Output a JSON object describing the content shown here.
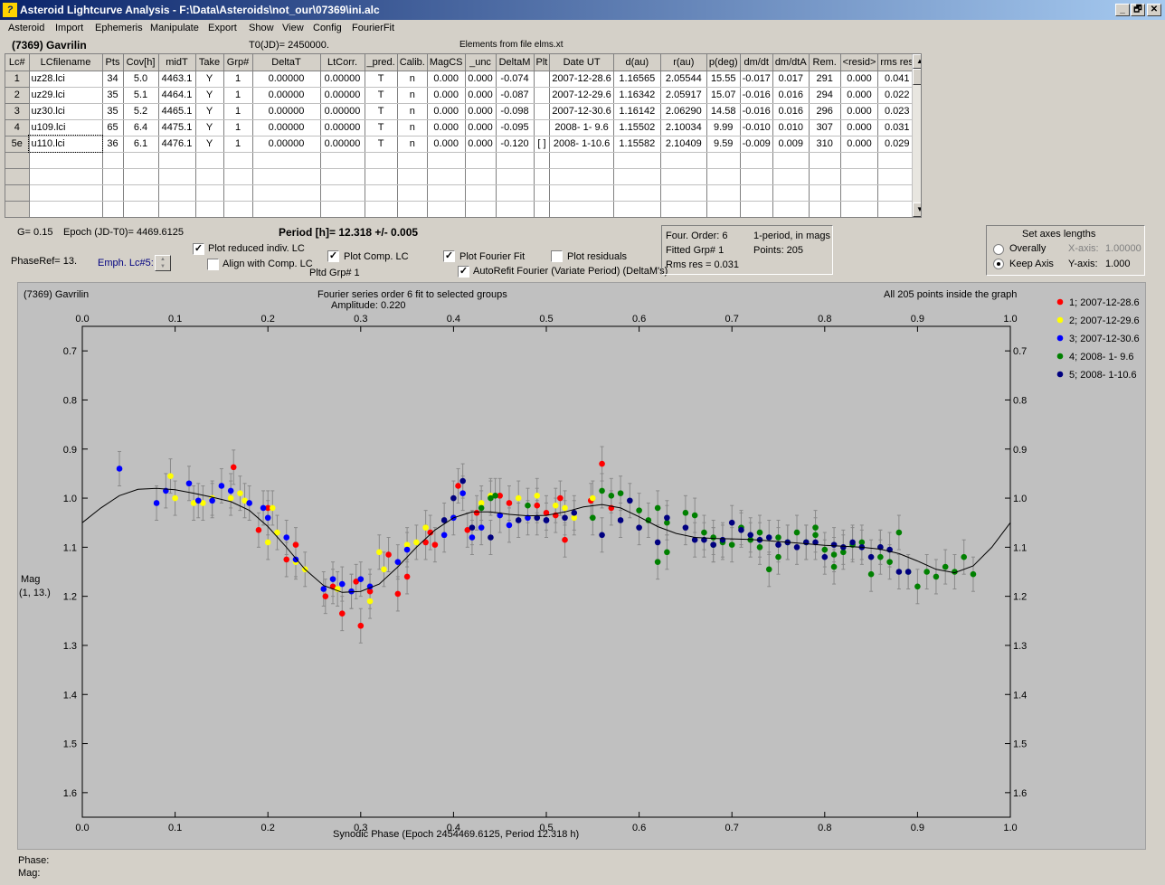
{
  "window": {
    "title": "Asteroid Lightcurve Analysis - F:\\Data\\Asteroids\\not_our\\07369\\ini.alc",
    "icon_name": "alc-app-icon",
    "controls": [
      "_",
      "🗗",
      "✕"
    ]
  },
  "menu": [
    "Asteroid",
    "Import",
    "Ephemeris",
    "Manipulate",
    "Export",
    "Show",
    "View",
    "Config",
    "FourierFit"
  ],
  "header": {
    "asteroid": "(7369) Gavrilin",
    "t0": "T0(JD)= 2450000.",
    "elements": "Elements from file elms.xt"
  },
  "grid": {
    "columns": [
      "Lc#",
      "LCfilename",
      "Pts",
      "Cov[h]",
      "midT",
      "Take",
      "Grp#",
      "DeltaT",
      "LtCorr.",
      "_pred.",
      "Calib.",
      "MagCS",
      "_unc",
      "DeltaM",
      "Plt",
      "Date UT",
      "d(au)",
      "r(au)",
      "p(deg)",
      "dm/dt",
      "dm/dtA",
      "Rem.",
      "<resid>",
      "rms res"
    ],
    "rows": [
      [
        "1",
        "uz28.lci",
        "34",
        "5.0",
        "4463.1",
        "Y",
        "1",
        "0.00000",
        "0.00000",
        "T",
        "n",
        "0.000",
        "0.000",
        "-0.074",
        "",
        "2007-12-28.6",
        "1.16565",
        "2.05544",
        "15.55",
        "-0.017",
        "0.017",
        "291",
        "0.000",
        "0.041"
      ],
      [
        "2",
        "uz29.lci",
        "35",
        "5.1",
        "4464.1",
        "Y",
        "1",
        "0.00000",
        "0.00000",
        "T",
        "n",
        "0.000",
        "0.000",
        "-0.087",
        "",
        "2007-12-29.6",
        "1.16342",
        "2.05917",
        "15.07",
        "-0.016",
        "0.016",
        "294",
        "0.000",
        "0.022"
      ],
      [
        "3",
        "uz30.lci",
        "35",
        "5.2",
        "4465.1",
        "Y",
        "1",
        "0.00000",
        "0.00000",
        "T",
        "n",
        "0.000",
        "0.000",
        "-0.098",
        "",
        "2007-12-30.6",
        "1.16142",
        "2.06290",
        "14.58",
        "-0.016",
        "0.016",
        "296",
        "0.000",
        "0.023"
      ],
      [
        "4",
        "u109.lci",
        "65",
        "6.4",
        "4475.1",
        "Y",
        "1",
        "0.00000",
        "0.00000",
        "T",
        "n",
        "0.000",
        "0.000",
        "-0.095",
        "",
        "2008- 1- 9.6",
        "1.15502",
        "2.10034",
        "9.99",
        "-0.010",
        "0.010",
        "307",
        "0.000",
        "0.031"
      ],
      [
        "5e",
        "u110.lci",
        "36",
        "6.1",
        "4476.1",
        "Y",
        "1",
        "0.00000",
        "0.00000",
        "T",
        "n",
        "0.000",
        "0.000",
        "-0.120",
        "[ ]",
        "2008- 1-10.6",
        "1.15582",
        "2.10409",
        "9.59",
        "-0.009",
        "0.009",
        "310",
        "0.000",
        "0.029"
      ]
    ],
    "empty_rows": 4
  },
  "controls": {
    "g": "G= 0.15",
    "epoch": "Epoch (JD-T0)= 4469.6125",
    "period": "Period [h]= 12.318 +/- 0.005",
    "phaseref": "PhaseRef= 13.",
    "emph": "Emph. Lc#5:",
    "plot_reduced": "Plot reduced indiv. LC",
    "align_comp": "Align with Comp. LC",
    "plot_comp": "Plot Comp. LC",
    "pltd_grp": "Pltd Grp#  1",
    "plot_fourier": "Plot Fourier Fit",
    "plot_residuals": "Plot residuals",
    "autorefit": "AutoRefit Fourier (Variate Period) (DeltaM's)"
  },
  "fourier_info": {
    "order": "Four. Order:  6",
    "fitted_grp": "Fitted Grp# 1",
    "rms": "Rms res     = 0.031",
    "one_period": "1-period, in mags",
    "points": "Points: 205"
  },
  "axes_panel": {
    "title": "Set axes lengths",
    "overally": "Overally",
    "keep_axis": "Keep Axis",
    "xaxis_label": "X-axis:",
    "xaxis_value": "1.00000",
    "yaxis_label": "Y-axis:",
    "yaxis_value": "1.000"
  },
  "status": {
    "phase": "Phase:",
    "mag": "Mag:"
  },
  "chart_data": {
    "type": "scatter",
    "title_left": "(7369) Gavrilin",
    "title": "Fourier series order 6 fit to selected groups",
    "subtitle": "Amplitude: 0.220",
    "note_right": "All 205 points inside the graph",
    "xlabel": "Synodic Phase (Epoch 2454469.6125, Period 12.318 h)",
    "ylabel": "Mag",
    "ylabel2": "(1, 13.)",
    "xlim": [
      0.0,
      1.0
    ],
    "ylim": [
      0.65,
      1.65
    ],
    "y_inverted": true,
    "xticks": [
      "0.0",
      "0.1",
      "0.2",
      "0.3",
      "0.4",
      "0.5",
      "0.6",
      "0.7",
      "0.8",
      "0.9",
      "1.0"
    ],
    "yticks": [
      "0.7",
      "0.8",
      "0.9",
      "1.0",
      "1.1",
      "1.2",
      "1.3",
      "1.4",
      "1.5",
      "1.6"
    ],
    "legend_position": "right",
    "fit_curve": [
      [
        0.0,
        1.05
      ],
      [
        0.02,
        1.02
      ],
      [
        0.04,
        0.995
      ],
      [
        0.06,
        0.982
      ],
      [
        0.08,
        0.98
      ],
      [
        0.1,
        0.983
      ],
      [
        0.12,
        0.99
      ],
      [
        0.14,
        0.998
      ],
      [
        0.16,
        1.007
      ],
      [
        0.18,
        1.025
      ],
      [
        0.2,
        1.058
      ],
      [
        0.22,
        1.1
      ],
      [
        0.24,
        1.145
      ],
      [
        0.26,
        1.178
      ],
      [
        0.28,
        1.192
      ],
      [
        0.3,
        1.19
      ],
      [
        0.32,
        1.175
      ],
      [
        0.34,
        1.14
      ],
      [
        0.36,
        1.1
      ],
      [
        0.38,
        1.065
      ],
      [
        0.4,
        1.04
      ],
      [
        0.42,
        1.028
      ],
      [
        0.44,
        1.028
      ],
      [
        0.46,
        1.033
      ],
      [
        0.48,
        1.036
      ],
      [
        0.5,
        1.035
      ],
      [
        0.52,
        1.028
      ],
      [
        0.54,
        1.018
      ],
      [
        0.56,
        1.013
      ],
      [
        0.58,
        1.02
      ],
      [
        0.6,
        1.038
      ],
      [
        0.62,
        1.058
      ],
      [
        0.64,
        1.072
      ],
      [
        0.66,
        1.08
      ],
      [
        0.68,
        1.082
      ],
      [
        0.7,
        1.083
      ],
      [
        0.72,
        1.084
      ],
      [
        0.74,
        1.087
      ],
      [
        0.76,
        1.09
      ],
      [
        0.78,
        1.093
      ],
      [
        0.8,
        1.096
      ],
      [
        0.82,
        1.098
      ],
      [
        0.84,
        1.1
      ],
      [
        0.86,
        1.104
      ],
      [
        0.88,
        1.113
      ],
      [
        0.9,
        1.128
      ],
      [
        0.92,
        1.145
      ],
      [
        0.94,
        1.152
      ],
      [
        0.96,
        1.138
      ],
      [
        0.98,
        1.1
      ],
      [
        1.0,
        1.05
      ]
    ],
    "series": [
      {
        "name": "1; 2007-12-28.6",
        "color": "#ff0000",
        "points": [
          [
            0.163,
            0.937
          ],
          [
            0.19,
            1.065
          ],
          [
            0.2,
            1.02
          ],
          [
            0.22,
            1.125
          ],
          [
            0.23,
            1.095
          ],
          [
            0.262,
            1.2
          ],
          [
            0.27,
            1.18
          ],
          [
            0.28,
            1.235
          ],
          [
            0.295,
            1.17
          ],
          [
            0.3,
            1.26
          ],
          [
            0.31,
            1.19
          ],
          [
            0.33,
            1.115
          ],
          [
            0.34,
            1.195
          ],
          [
            0.35,
            1.16
          ],
          [
            0.37,
            1.09
          ],
          [
            0.375,
            1.07
          ],
          [
            0.38,
            1.095
          ],
          [
            0.405,
            0.975
          ],
          [
            0.415,
            1.065
          ],
          [
            0.425,
            1.03
          ],
          [
            0.45,
            0.995
          ],
          [
            0.46,
            1.01
          ],
          [
            0.49,
            1.015
          ],
          [
            0.5,
            1.03
          ],
          [
            0.51,
            1.035
          ],
          [
            0.515,
            1.0
          ],
          [
            0.52,
            1.085
          ],
          [
            0.548,
            1.005
          ],
          [
            0.56,
            0.93
          ],
          [
            0.57,
            1.02
          ]
        ]
      },
      {
        "name": "2; 2007-12-29.6",
        "color": "#ffff00",
        "points": [
          [
            0.095,
            0.955
          ],
          [
            0.1,
            1.0
          ],
          [
            0.12,
            1.01
          ],
          [
            0.13,
            1.01
          ],
          [
            0.14,
            1.0
          ],
          [
            0.16,
            1.0
          ],
          [
            0.17,
            0.99
          ],
          [
            0.175,
            1.005
          ],
          [
            0.2,
            1.09
          ],
          [
            0.205,
            1.02
          ],
          [
            0.21,
            1.07
          ],
          [
            0.23,
            1.13
          ],
          [
            0.24,
            1.145
          ],
          [
            0.275,
            1.185
          ],
          [
            0.29,
            1.19
          ],
          [
            0.31,
            1.21
          ],
          [
            0.32,
            1.11
          ],
          [
            0.325,
            1.145
          ],
          [
            0.35,
            1.095
          ],
          [
            0.36,
            1.09
          ],
          [
            0.37,
            1.06
          ],
          [
            0.43,
            1.01
          ],
          [
            0.44,
            0.995
          ],
          [
            0.47,
            1.0
          ],
          [
            0.49,
            0.995
          ],
          [
            0.51,
            1.015
          ],
          [
            0.52,
            1.02
          ],
          [
            0.53,
            1.04
          ],
          [
            0.55,
            1.0
          ]
        ]
      },
      {
        "name": "3; 2007-12-30.6",
        "color": "#0000ff",
        "points": [
          [
            0.04,
            0.94
          ],
          [
            0.08,
            1.01
          ],
          [
            0.09,
            0.985
          ],
          [
            0.115,
            0.97
          ],
          [
            0.125,
            1.005
          ],
          [
            0.14,
            1.005
          ],
          [
            0.15,
            0.975
          ],
          [
            0.16,
            0.985
          ],
          [
            0.18,
            1.01
          ],
          [
            0.195,
            1.02
          ],
          [
            0.2,
            1.04
          ],
          [
            0.22,
            1.08
          ],
          [
            0.23,
            1.125
          ],
          [
            0.26,
            1.185
          ],
          [
            0.27,
            1.165
          ],
          [
            0.28,
            1.175
          ],
          [
            0.29,
            1.19
          ],
          [
            0.3,
            1.165
          ],
          [
            0.31,
            1.18
          ],
          [
            0.34,
            1.13
          ],
          [
            0.35,
            1.105
          ],
          [
            0.39,
            1.075
          ],
          [
            0.4,
            1.04
          ],
          [
            0.41,
            0.99
          ],
          [
            0.42,
            1.08
          ],
          [
            0.43,
            1.06
          ],
          [
            0.45,
            1.035
          ],
          [
            0.46,
            1.055
          ],
          [
            0.48,
            1.04
          ],
          [
            0.5,
            1.045
          ]
        ]
      },
      {
        "name": "4; 2008- 1- 9.6",
        "color": "#008000",
        "points": [
          [
            0.43,
            1.02
          ],
          [
            0.44,
            1.0
          ],
          [
            0.445,
            0.995
          ],
          [
            0.48,
            1.015
          ],
          [
            0.55,
            1.04
          ],
          [
            0.56,
            0.985
          ],
          [
            0.57,
            0.995
          ],
          [
            0.58,
            0.99
          ],
          [
            0.6,
            1.025
          ],
          [
            0.61,
            1.045
          ],
          [
            0.62,
            1.02
          ],
          [
            0.63,
            1.05
          ],
          [
            0.65,
            1.03
          ],
          [
            0.66,
            1.035
          ],
          [
            0.67,
            1.07
          ],
          [
            0.68,
            1.095
          ],
          [
            0.69,
            1.09
          ],
          [
            0.7,
            1.095
          ],
          [
            0.71,
            1.06
          ],
          [
            0.72,
            1.085
          ],
          [
            0.73,
            1.1
          ],
          [
            0.74,
            1.145
          ],
          [
            0.75,
            1.08
          ],
          [
            0.76,
            1.09
          ],
          [
            0.77,
            1.07
          ],
          [
            0.78,
            1.09
          ],
          [
            0.79,
            1.075
          ],
          [
            0.8,
            1.105
          ],
          [
            0.81,
            1.115
          ],
          [
            0.82,
            1.11
          ],
          [
            0.83,
            1.095
          ],
          [
            0.84,
            1.09
          ],
          [
            0.85,
            1.155
          ],
          [
            0.86,
            1.12
          ],
          [
            0.87,
            1.13
          ],
          [
            0.88,
            1.07
          ],
          [
            0.89,
            1.15
          ],
          [
            0.9,
            1.18
          ],
          [
            0.91,
            1.15
          ],
          [
            0.92,
            1.16
          ],
          [
            0.93,
            1.14
          ],
          [
            0.94,
            1.15
          ],
          [
            0.95,
            1.12
          ],
          [
            0.96,
            1.155
          ],
          [
            0.62,
            1.13
          ],
          [
            0.63,
            1.11
          ],
          [
            0.68,
            1.08
          ],
          [
            0.73,
            1.07
          ],
          [
            0.75,
            1.12
          ],
          [
            0.79,
            1.06
          ],
          [
            0.81,
            1.14
          ],
          [
            0.86,
            1.1
          ]
        ]
      },
      {
        "name": "5; 2008- 1-10.6",
        "color": "#000080",
        "points": [
          [
            0.39,
            1.045
          ],
          [
            0.4,
            1.0
          ],
          [
            0.41,
            0.965
          ],
          [
            0.42,
            1.06
          ],
          [
            0.44,
            1.08
          ],
          [
            0.47,
            1.045
          ],
          [
            0.49,
            1.04
          ],
          [
            0.5,
            1.045
          ],
          [
            0.52,
            1.04
          ],
          [
            0.53,
            1.03
          ],
          [
            0.56,
            1.075
          ],
          [
            0.58,
            1.045
          ],
          [
            0.59,
            1.005
          ],
          [
            0.6,
            1.06
          ],
          [
            0.62,
            1.09
          ],
          [
            0.63,
            1.04
          ],
          [
            0.65,
            1.06
          ],
          [
            0.66,
            1.085
          ],
          [
            0.67,
            1.085
          ],
          [
            0.68,
            1.095
          ],
          [
            0.69,
            1.085
          ],
          [
            0.7,
            1.05
          ],
          [
            0.71,
            1.065
          ],
          [
            0.72,
            1.075
          ],
          [
            0.73,
            1.085
          ],
          [
            0.74,
            1.08
          ],
          [
            0.75,
            1.095
          ],
          [
            0.76,
            1.09
          ],
          [
            0.77,
            1.1
          ],
          [
            0.78,
            1.09
          ],
          [
            0.79,
            1.09
          ],
          [
            0.8,
            1.12
          ],
          [
            0.81,
            1.095
          ],
          [
            0.82,
            1.1
          ],
          [
            0.83,
            1.09
          ],
          [
            0.84,
            1.1
          ],
          [
            0.85,
            1.12
          ],
          [
            0.86,
            1.1
          ],
          [
            0.87,
            1.105
          ],
          [
            0.88,
            1.15
          ],
          [
            0.89,
            1.15
          ]
        ]
      }
    ]
  }
}
